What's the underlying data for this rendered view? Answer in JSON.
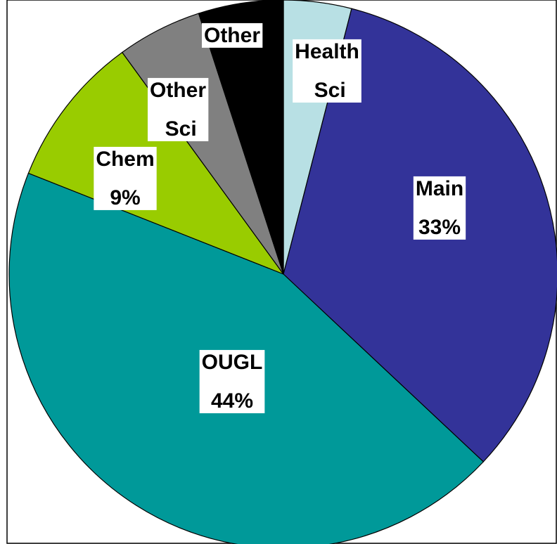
{
  "chart_data": {
    "type": "pie",
    "categories": [
      "Health Sci",
      "Main",
      "OUGL",
      "Chem",
      "Other Sci",
      "Other"
    ],
    "values": [
      4,
      33,
      44,
      9,
      5,
      5
    ],
    "value_labels": [
      null,
      "33%",
      "44%",
      "9%",
      null,
      null
    ],
    "colors": [
      "#b8e0e4",
      "#333399",
      "#009999",
      "#99cc00",
      "#808080",
      "#000000"
    ]
  }
}
